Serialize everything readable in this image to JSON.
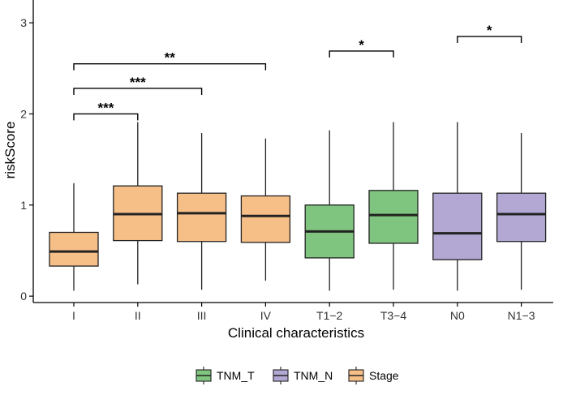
{
  "chart_data": {
    "type": "boxplot",
    "xlabel": "Clinical characteristics",
    "ylabel": "riskScore",
    "ylim": [
      -0.07,
      3.25
    ],
    "yticks": [
      0,
      1,
      2,
      3
    ],
    "categories": [
      "I",
      "II",
      "III",
      "IV",
      "T1−2",
      "T3−4",
      "N0",
      "N1−3"
    ],
    "groups": [
      "Stage",
      "Stage",
      "Stage",
      "Stage",
      "TNM_T",
      "TNM_T",
      "TNM_N",
      "TNM_N"
    ],
    "colors": {
      "TNM_T": "#7fc47f",
      "TNM_N": "#b3a8d3",
      "Stage": "#f7bf88"
    },
    "boxes": [
      {
        "category": "I",
        "min": 0.06,
        "q1": 0.33,
        "median": 0.49,
        "q3": 0.7,
        "max": 1.24
      },
      {
        "category": "II",
        "min": 0.13,
        "q1": 0.61,
        "median": 0.9,
        "q3": 1.21,
        "max": 1.91
      },
      {
        "category": "III",
        "min": 0.07,
        "q1": 0.6,
        "median": 0.91,
        "q3": 1.13,
        "max": 1.79
      },
      {
        "category": "IV",
        "min": 0.17,
        "q1": 0.59,
        "median": 0.88,
        "q3": 1.1,
        "max": 1.73
      },
      {
        "category": "T1−2",
        "min": 0.06,
        "q1": 0.42,
        "median": 0.71,
        "q3": 1.0,
        "max": 1.82
      },
      {
        "category": "T3−4",
        "min": 0.07,
        "q1": 0.58,
        "median": 0.89,
        "q3": 1.16,
        "max": 1.91
      },
      {
        "category": "N0",
        "min": 0.06,
        "q1": 0.4,
        "median": 0.69,
        "q3": 1.13,
        "max": 1.91
      },
      {
        "category": "N1−3",
        "min": 0.07,
        "q1": 0.6,
        "median": 0.9,
        "q3": 1.13,
        "max": 1.79
      }
    ],
    "significance": [
      {
        "from": 0,
        "to": 1,
        "y": 2.0,
        "label": "***"
      },
      {
        "from": 0,
        "to": 2,
        "y": 2.28,
        "label": "***"
      },
      {
        "from": 0,
        "to": 3,
        "y": 2.55,
        "label": "**"
      },
      {
        "from": 4,
        "to": 5,
        "y": 2.69,
        "label": "*"
      },
      {
        "from": 6,
        "to": 7,
        "y": 2.85,
        "label": "*"
      }
    ],
    "legend": {
      "position": "bottom",
      "items": [
        {
          "label": "TNM_T",
          "group": "TNM_T"
        },
        {
          "label": "TNM_N",
          "group": "TNM_N"
        },
        {
          "label": "Stage",
          "group": "Stage"
        }
      ]
    }
  }
}
